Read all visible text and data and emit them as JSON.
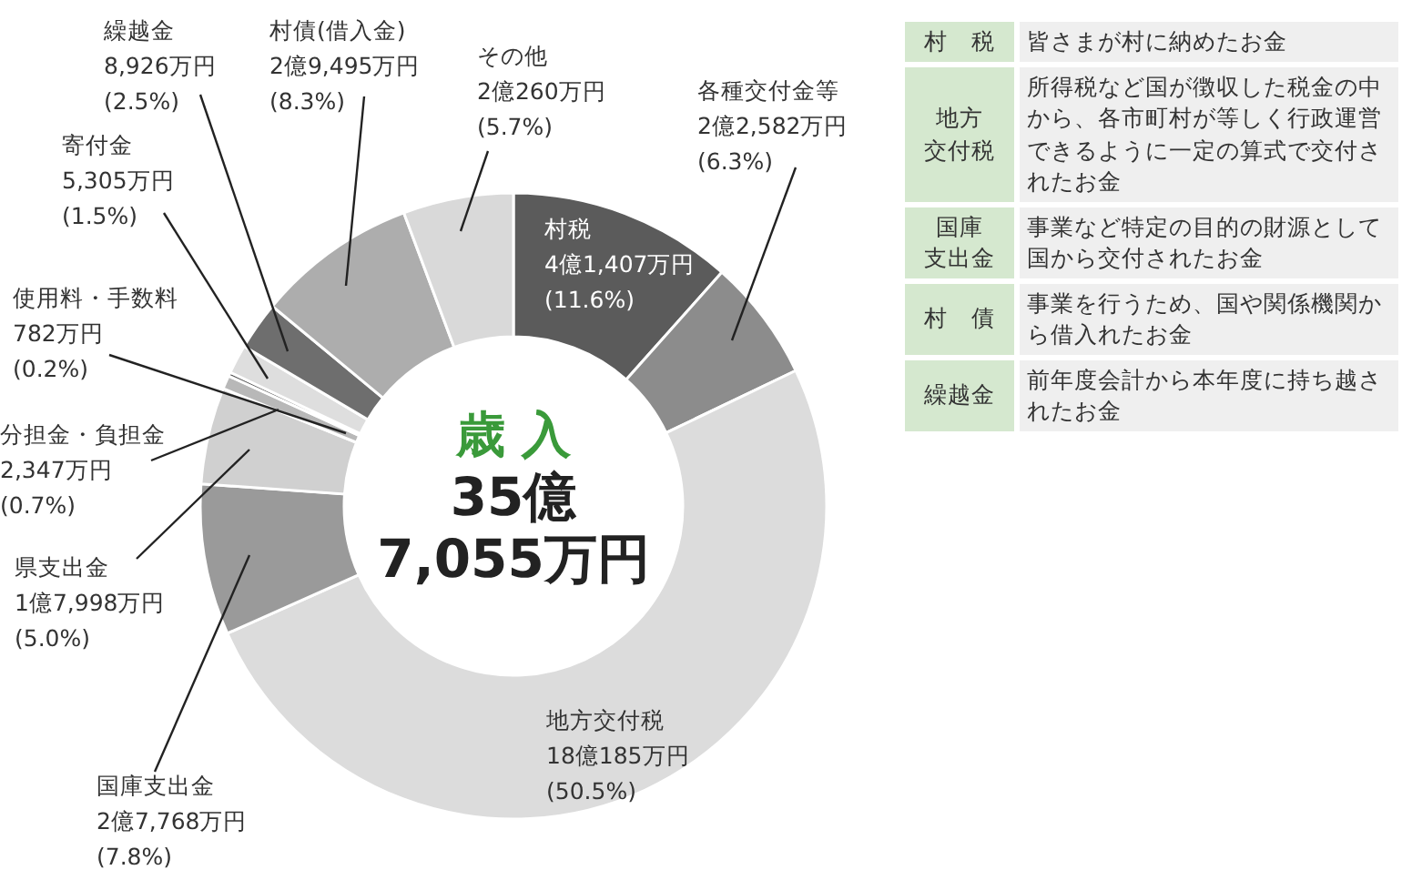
{
  "chart_data": {
    "type": "donut",
    "title": "歳 入",
    "categories": [
      "村税",
      "各種交付金等",
      "地方交付税",
      "国庫支出金",
      "県支出金",
      "分担金・負担金",
      "使用料・手数料",
      "寄付金",
      "繰越金",
      "村債(借入金)",
      "その他"
    ],
    "values": [
      11.6,
      6.3,
      50.5,
      7.8,
      5.0,
      0.7,
      0.2,
      1.5,
      2.5,
      8.3,
      5.7
    ],
    "value_labels": [
      "4億1,407万円\n(11.6%)",
      "2億2,582万円\n(6.3%)",
      "18億185万円\n(50.5%)",
      "2億7,768万円\n(7.8%)",
      "1億7,998万円\n(5.0%)",
      "2,347万円\n(0.7%)",
      "782万円\n(0.2%)",
      "5,305万円\n(1.5%)",
      "8,926万円\n(2.5%)",
      "2億9,495万円\n(8.3%)",
      "2億260万円\n(5.7%)"
    ],
    "colors": [
      "#5b5b5b",
      "#8c8c8c",
      "#dcdcdc",
      "#9a9a9a",
      "#d0d0d0",
      "#b8b8b8",
      "#606060",
      "#dedede",
      "#6e6e6e",
      "#adadad",
      "#d9d9d9"
    ],
    "annotations": [
      "35億\n7,055万円",
      "村　税",
      "皆さまが村に納めたお金",
      "地方交付税",
      "所得税など国が徴収した税金の中から、各市町村が等しく行政運営できるように一定の算式で交付されたお金",
      "国庫支出金",
      "事業など特定の目的の財源として国から交付されたお金",
      "村　債",
      "事業を行うため、国や関係機関から借入れたお金",
      "繰越金",
      "前年度会計から本年度に持ち越されたお金"
    ]
  }
}
